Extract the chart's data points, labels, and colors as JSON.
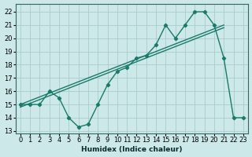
{
  "xlabel": "Humidex (Indice chaleur)",
  "bg_color": "#cce8e8",
  "grid_color": "#aacccc",
  "line_color": "#1a7a6a",
  "xlim": [
    -0.5,
    23.5
  ],
  "ylim": [
    12.8,
    22.6
  ],
  "yticks": [
    13,
    14,
    15,
    16,
    17,
    18,
    19,
    20,
    21,
    22
  ],
  "xticks": [
    0,
    1,
    2,
    3,
    4,
    5,
    6,
    7,
    8,
    9,
    10,
    11,
    12,
    13,
    14,
    15,
    16,
    17,
    18,
    19,
    20,
    21,
    22,
    23
  ],
  "data_x": [
    0,
    1,
    2,
    3,
    4,
    5,
    6,
    7,
    8,
    9,
    10,
    11,
    12,
    13,
    14,
    15,
    16,
    17,
    18,
    19,
    20,
    21,
    22,
    23
  ],
  "data_y": [
    15,
    15,
    15,
    16,
    15.5,
    14,
    13.3,
    13.5,
    15,
    16.5,
    17.5,
    17.8,
    18.5,
    18.7,
    19.5,
    21,
    20,
    21,
    22,
    22,
    21,
    18.5,
    14,
    14
  ],
  "trend1_x": [
    0,
    21
  ],
  "trend1_y": [
    15.0,
    21.0
  ],
  "trend2_x": [
    0,
    21
  ],
  "trend2_y": [
    14.8,
    20.8
  ]
}
